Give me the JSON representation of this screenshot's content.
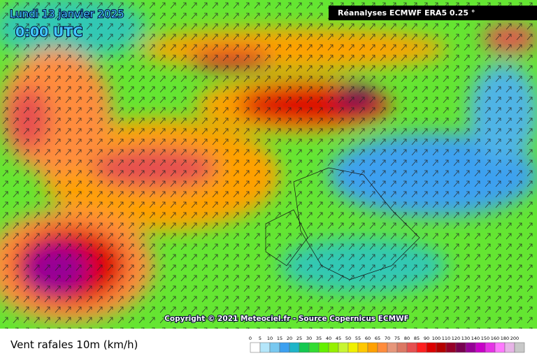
{
  "header": {
    "date": "Lundi 13 janvier 2025",
    "time": "0:00 UTC",
    "source": "Réanalyses ECMWF ERA5 0.25 °"
  },
  "footer": {
    "copyright": "Copyright © 2021 Meteociel.fr - Source Copernicus ECMWF"
  },
  "legend": {
    "title": "Vent rafales 10m (km/h)",
    "labels": [
      0,
      5,
      10,
      15,
      20,
      25,
      30,
      35,
      40,
      45,
      50,
      55,
      60,
      65,
      70,
      75,
      80,
      85,
      90,
      100,
      110,
      120,
      130,
      140,
      150,
      160,
      180,
      200
    ],
    "colors": [
      "#ffffff",
      "#b4e6fa",
      "#78c8f0",
      "#3ca0f0",
      "#1eb4c8",
      "#14c850",
      "#32dc32",
      "#64f000",
      "#96f000",
      "#c8f532",
      "#f0f000",
      "#ffc800",
      "#ffa000",
      "#ff8c3c",
      "#e6967a",
      "#dc7864",
      "#e65050",
      "#ff2020",
      "#dc0000",
      "#b40000",
      "#960028",
      "#780050",
      "#960096",
      "#c800c8",
      "#e632e6",
      "#ff78ff",
      "#e6b4e6",
      "#c8c8c8"
    ]
  }
}
